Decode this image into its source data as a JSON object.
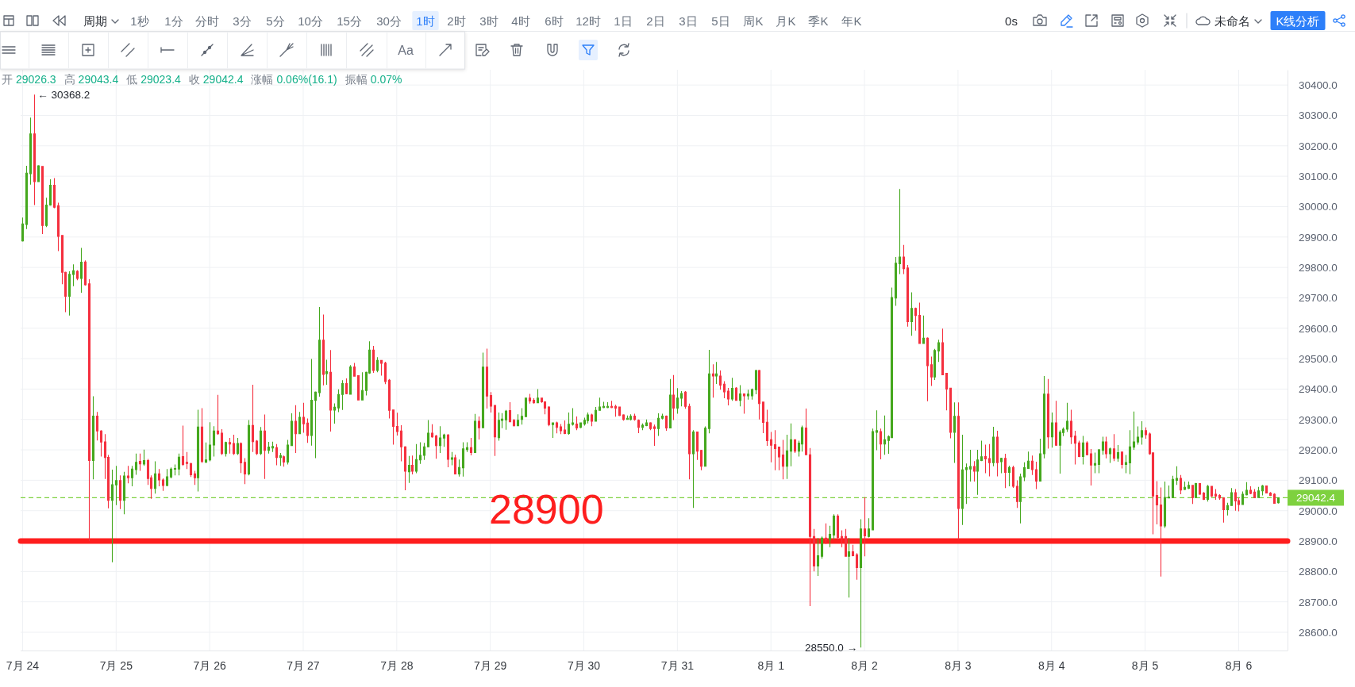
{
  "chart_data": {
    "type": "candlestick",
    "subtitle": "开 29026.3 高 29043.4 低 29023.4 收 29042.4 涨幅 0.06%(16.1) 振幅 0.07%",
    "categories": [
      "7月 24",
      null,
      null,
      null,
      null,
      null,
      null,
      null,
      null,
      null,
      null,
      null,
      null,
      null,
      null,
      null,
      null,
      null,
      null,
      null,
      null,
      null,
      null,
      null,
      "7月 25",
      null,
      null,
      null,
      null,
      null,
      null,
      null,
      null,
      null,
      null,
      null,
      null,
      null,
      null,
      null,
      null,
      null,
      null,
      null,
      null,
      null,
      null,
      null,
      "7月 26",
      null,
      null,
      null,
      null,
      null,
      null,
      null,
      null,
      null,
      null,
      null,
      null,
      null,
      null,
      null,
      null,
      null,
      null,
      null,
      null,
      null,
      null,
      null,
      "7月 27",
      null,
      null,
      null,
      null,
      null,
      null,
      null,
      null,
      null,
      null,
      null,
      null,
      null,
      null,
      null,
      null,
      null,
      null,
      null,
      null,
      null,
      null,
      null,
      "7月 28",
      null,
      null,
      null,
      null,
      null,
      null,
      null,
      null,
      null,
      null,
      null,
      null,
      null,
      null,
      null,
      null,
      null,
      null,
      null,
      null,
      null,
      null,
      null,
      "7月 29",
      null,
      null,
      null,
      null,
      null,
      null,
      null,
      null,
      null,
      null,
      null,
      null,
      null,
      null,
      null,
      null,
      null,
      null,
      null,
      null,
      null,
      null,
      null,
      "7月 30",
      null,
      null,
      null,
      null,
      null,
      null,
      null,
      null,
      null,
      null,
      null,
      null,
      null,
      null,
      null,
      null,
      null,
      null,
      null,
      null,
      null,
      null,
      null,
      "7月 31",
      null,
      null,
      null,
      null,
      null,
      null,
      null,
      null,
      null,
      null,
      null,
      null,
      null,
      null,
      null,
      null,
      null,
      null,
      null,
      null,
      null,
      null,
      null,
      "8月 1",
      null,
      null,
      null,
      null,
      null,
      null,
      null,
      null,
      null,
      null,
      null,
      null,
      null,
      null,
      null,
      null,
      null,
      null,
      null,
      null,
      null,
      null,
      null,
      "8月 2",
      null,
      null,
      null,
      null,
      null,
      null,
      null,
      null,
      null,
      null,
      null,
      null,
      null,
      null,
      null,
      null,
      null,
      null,
      null,
      null,
      null,
      null,
      null,
      "8月 3",
      null,
      null,
      null,
      null,
      null,
      null,
      null,
      null,
      null,
      null,
      null,
      null,
      null,
      null,
      null,
      null,
      null,
      null,
      null,
      null,
      null,
      null,
      null,
      "8月 4",
      null,
      null,
      null,
      null,
      null,
      null,
      null,
      null,
      null,
      null,
      null,
      null,
      null,
      null,
      null,
      null,
      null,
      null,
      null,
      null,
      null,
      null,
      null,
      "8月 5",
      null,
      null,
      null,
      null,
      null,
      null,
      null,
      null,
      null,
      null,
      null,
      null,
      null,
      null,
      null,
      null,
      null,
      null,
      null,
      null,
      null,
      null,
      null,
      "8月 6",
      null,
      null,
      null,
      null,
      null,
      null,
      null,
      null,
      null,
      null
    ],
    "ohlc": [
      [
        29887,
        29964,
        29885,
        29943
      ],
      [
        29941,
        30134,
        29926,
        30110
      ],
      [
        30108,
        30293,
        30072,
        30239
      ],
      [
        30239,
        30368.2,
        30005,
        30082
      ],
      [
        30082,
        30136,
        30082,
        30134
      ],
      [
        30132,
        30132,
        29910,
        29938
      ],
      [
        29938,
        30029,
        29933,
        30005
      ],
      [
        30005,
        30090,
        30003,
        30070
      ],
      [
        30070,
        30094,
        29995,
        29998
      ],
      [
        30003,
        30013,
        29854,
        29902
      ],
      [
        29905,
        29905,
        29745,
        29784
      ],
      [
        29784,
        29786,
        29653,
        29705
      ],
      [
        29705,
        29787,
        29642,
        29777
      ],
      [
        29777,
        29810,
        29738,
        29789
      ],
      [
        29787,
        29791,
        29758,
        29764
      ],
      [
        29764,
        29864,
        29717,
        29817
      ],
      [
        29818,
        29823,
        29740,
        29743
      ],
      [
        29746,
        29761,
        28900,
        29165
      ],
      [
        29165,
        29376,
        29103,
        29311
      ],
      [
        29311,
        29325,
        29231,
        29262
      ],
      [
        29262,
        29265,
        29178,
        29226
      ],
      [
        29226,
        29252,
        29104,
        29175
      ],
      [
        29175,
        29183,
        29008,
        29034
      ],
      [
        29034,
        29135,
        28830,
        29085
      ],
      [
        29085,
        29147,
        29018,
        29099
      ],
      [
        29099,
        29116,
        29005,
        29034
      ],
      [
        29034,
        29128,
        28988,
        29114
      ],
      [
        29114,
        29147,
        29090,
        29108
      ],
      [
        29108,
        29147,
        29080,
        29137
      ],
      [
        29135,
        29188,
        29118,
        29159
      ],
      [
        29162,
        29188,
        29131,
        29154
      ],
      [
        29153,
        29201,
        29147,
        29165
      ],
      [
        29165,
        29170,
        29085,
        29106
      ],
      [
        29108,
        29116,
        29039,
        29073
      ],
      [
        29073,
        29162,
        29056,
        29121
      ],
      [
        29121,
        29137,
        29080,
        29101
      ],
      [
        29101,
        29106,
        29065,
        29083
      ],
      [
        29083,
        29137,
        29080,
        29111
      ],
      [
        29111,
        29142,
        29106,
        29137
      ],
      [
        29137,
        29152,
        29116,
        29139
      ],
      [
        29137,
        29188,
        29116,
        29176
      ],
      [
        29178,
        29280,
        29147,
        29152
      ],
      [
        29159,
        29193,
        29137,
        29155
      ],
      [
        29155,
        29157,
        29111,
        29118
      ],
      [
        29121,
        29131,
        29085,
        29108
      ],
      [
        29108,
        29332,
        29063,
        29275
      ],
      [
        29275,
        29337,
        29157,
        29162
      ],
      [
        29159,
        29224,
        29157,
        29167
      ],
      [
        29167,
        29291,
        29162,
        29216
      ],
      [
        29216,
        29278,
        29178,
        29262
      ],
      [
        29262,
        29381,
        29250,
        29253
      ],
      [
        29255,
        29268,
        29183,
        29188
      ],
      [
        29188,
        29227,
        29178,
        29224
      ],
      [
        29224,
        29239,
        29188,
        29219
      ],
      [
        29221,
        29250,
        29183,
        29188
      ],
      [
        29188,
        29239,
        29183,
        29221
      ],
      [
        29221,
        29224,
        29124,
        29157
      ],
      [
        29159,
        29173,
        29087,
        29121
      ],
      [
        29121,
        29298,
        29116,
        29280
      ],
      [
        29280,
        29414,
        29193,
        29227
      ],
      [
        29229,
        29232,
        29183,
        29188
      ],
      [
        29188,
        29275,
        29183,
        29262
      ],
      [
        29262,
        29316,
        29104,
        29198
      ],
      [
        29198,
        29226,
        29188,
        29209
      ],
      [
        29206,
        29227,
        29193,
        29211
      ],
      [
        29207,
        29219,
        29149,
        29175
      ],
      [
        29175,
        29190,
        29147,
        29181
      ],
      [
        29177,
        29181,
        29145,
        29160
      ],
      [
        29160,
        29233,
        29152,
        29216
      ],
      [
        29214,
        29320,
        29214,
        29294
      ],
      [
        29294,
        29347,
        29190,
        29253
      ],
      [
        29253,
        29325,
        29253,
        29307
      ],
      [
        29307,
        29355,
        29256,
        29286
      ],
      [
        29288,
        29303,
        29223,
        29247
      ],
      [
        29247,
        29499,
        29214,
        29363
      ],
      [
        29363,
        29392,
        29173,
        29390
      ],
      [
        29388,
        29670,
        29375,
        29561
      ],
      [
        29561,
        29645,
        29412,
        29448
      ],
      [
        29451,
        29496,
        29414,
        29457
      ],
      [
        29455,
        29528,
        29260,
        29331
      ],
      [
        29331,
        29353,
        29286,
        29340
      ],
      [
        29338,
        29399,
        29324,
        29382
      ],
      [
        29382,
        29429,
        29331,
        29418
      ],
      [
        29418,
        29435,
        29383,
        29385
      ],
      [
        29383,
        29479,
        29383,
        29473
      ],
      [
        29473,
        29486,
        29442,
        29442
      ],
      [
        29444,
        29444,
        29364,
        29364
      ],
      [
        29364,
        29455,
        29364,
        29395
      ],
      [
        29395,
        29457,
        29379,
        29455
      ],
      [
        29453,
        29557,
        29450,
        29528
      ],
      [
        29528,
        29542,
        29453,
        29461
      ],
      [
        29461,
        29505,
        29455,
        29494
      ],
      [
        29494,
        29494,
        29444,
        29485
      ],
      [
        29485,
        29490,
        29416,
        29425
      ],
      [
        29429,
        29433,
        29303,
        29330
      ],
      [
        29331,
        29331,
        29217,
        29277
      ],
      [
        29277,
        29322,
        29247,
        29260
      ],
      [
        29262,
        29281,
        29162,
        29210
      ],
      [
        29210,
        29212,
        29067,
        29130
      ],
      [
        29128,
        29180,
        29091,
        29149
      ],
      [
        29149,
        29181,
        29119,
        29130
      ],
      [
        29130,
        29219,
        29123,
        29168
      ],
      [
        29167,
        29225,
        29154,
        29182
      ],
      [
        29182,
        29223,
        29167,
        29210
      ],
      [
        29210,
        29298,
        29210,
        29255
      ],
      [
        29255,
        29284,
        29240,
        29243
      ],
      [
        29246,
        29249,
        29171,
        29214
      ],
      [
        29214,
        29278,
        29190,
        29239
      ],
      [
        29239,
        29253,
        29210,
        29249
      ],
      [
        29249,
        29252,
        29143,
        29169
      ],
      [
        29169,
        29193,
        29149,
        29174
      ],
      [
        29174,
        29184,
        29119,
        29121
      ],
      [
        29121,
        29168,
        29112,
        29142
      ],
      [
        29141,
        29225,
        29112,
        29203
      ],
      [
        29201,
        29225,
        29193,
        29207
      ],
      [
        29207,
        29239,
        29182,
        29191
      ],
      [
        29191,
        29318,
        29191,
        29294
      ],
      [
        29294,
        29310,
        29234,
        29273
      ],
      [
        29273,
        29520,
        29273,
        29472
      ],
      [
        29472,
        29533,
        29336,
        29377
      ],
      [
        29379,
        29390,
        29323,
        29344
      ],
      [
        29346,
        29346,
        29180,
        29243
      ],
      [
        29240,
        29323,
        29230,
        29297
      ],
      [
        29297,
        29321,
        29271,
        29301
      ],
      [
        29299,
        29331,
        29266,
        29327
      ],
      [
        29329,
        29357,
        29292,
        29292
      ],
      [
        29297,
        29301,
        29277,
        29279
      ],
      [
        29279,
        29317,
        29279,
        29297
      ],
      [
        29300,
        29337,
        29283,
        29310
      ],
      [
        29309,
        29370,
        29309,
        29370
      ],
      [
        29370,
        29384,
        29352,
        29361
      ],
      [
        29363,
        29370,
        29352,
        29355
      ],
      [
        29355,
        29400,
        29355,
        29370
      ],
      [
        29370,
        29372,
        29355,
        29358
      ],
      [
        29358,
        29358,
        29317,
        29337
      ],
      [
        29341,
        29343,
        29278,
        29283
      ],
      [
        29283,
        29289,
        29239,
        29289
      ],
      [
        29289,
        29293,
        29254,
        29274
      ],
      [
        29276,
        29285,
        29252,
        29263
      ],
      [
        29265,
        29297,
        29252,
        29254
      ],
      [
        29254,
        29323,
        29250,
        29284
      ],
      [
        29284,
        29337,
        29280,
        29289
      ],
      [
        29285,
        29310,
        29265,
        29272
      ],
      [
        29274,
        29289,
        29271,
        29289
      ],
      [
        29285,
        29306,
        29280,
        29297
      ],
      [
        29296,
        29323,
        29287,
        29315
      ],
      [
        29315,
        29319,
        29278,
        29294
      ],
      [
        29294,
        29341,
        29294,
        29330
      ],
      [
        29330,
        29372,
        29330,
        29341
      ],
      [
        29339,
        29358,
        29337,
        29343
      ],
      [
        29339,
        29357,
        29337,
        29343
      ],
      [
        29343,
        29361,
        29337,
        29339
      ],
      [
        29343,
        29348,
        29309,
        29337
      ],
      [
        29341,
        29341,
        29311,
        29313
      ],
      [
        29315,
        29317,
        29296,
        29300
      ],
      [
        29300,
        29313,
        29300,
        29304
      ],
      [
        29300,
        29317,
        29297,
        29310
      ],
      [
        29311,
        29319,
        29296,
        29300
      ],
      [
        29297,
        29300,
        29255,
        29274
      ],
      [
        29274,
        29287,
        29265,
        29281
      ],
      [
        29280,
        29300,
        29278,
        29289
      ],
      [
        29289,
        29291,
        29265,
        29270
      ],
      [
        29276,
        29283,
        29213,
        29270
      ],
      [
        29270,
        29320,
        29246,
        29304
      ],
      [
        29304,
        29319,
        29300,
        29311
      ],
      [
        29311,
        29313,
        29263,
        29272
      ],
      [
        29272,
        29433,
        29272,
        29380
      ],
      [
        29380,
        29446,
        29298,
        29337
      ],
      [
        29337,
        29403,
        29319,
        29370
      ],
      [
        29370,
        29393,
        29343,
        29385
      ],
      [
        29390,
        29393,
        29335,
        29343
      ],
      [
        29343,
        29352,
        29103,
        29187
      ],
      [
        29187,
        29265,
        29009,
        29259
      ],
      [
        29259,
        29259,
        29167,
        29196
      ],
      [
        29198,
        29200,
        29133,
        29146
      ],
      [
        29146,
        29277,
        29146,
        29271
      ],
      [
        29270,
        29529,
        29254,
        29450
      ],
      [
        29450,
        29481,
        29372,
        29443
      ],
      [
        29443,
        29489,
        29417,
        29450
      ],
      [
        29443,
        29461,
        29398,
        29413
      ],
      [
        29416,
        29426,
        29370,
        29391
      ],
      [
        29393,
        29404,
        29346,
        29367
      ],
      [
        29367,
        29437,
        29361,
        29402
      ],
      [
        29403,
        29406,
        29361,
        29363
      ],
      [
        29363,
        29413,
        29343,
        29384
      ],
      [
        29384,
        29384,
        29319,
        29378
      ],
      [
        29378,
        29398,
        29365,
        29383
      ],
      [
        29378,
        29402,
        29365,
        29398
      ],
      [
        29398,
        29463,
        29383,
        29461
      ],
      [
        29461,
        29463,
        29300,
        29352
      ],
      [
        29357,
        29357,
        29255,
        29290
      ],
      [
        29291,
        29332,
        29213,
        29230
      ],
      [
        29233,
        29259,
        29159,
        29215
      ],
      [
        29217,
        29265,
        29133,
        29204
      ],
      [
        29209,
        29210,
        29133,
        29177
      ],
      [
        29183,
        29233,
        29103,
        29146
      ],
      [
        29146,
        29250,
        29104,
        29197
      ],
      [
        29196,
        29287,
        29146,
        29233
      ],
      [
        29233,
        29233,
        29190,
        29196
      ],
      [
        29196,
        29230,
        29178,
        29222
      ],
      [
        29219,
        29280,
        29194,
        29273
      ],
      [
        29272,
        29336,
        29184,
        29184
      ],
      [
        29184,
        29206,
        28686,
        28915
      ],
      [
        28915,
        28940,
        28800,
        28818
      ],
      [
        28818,
        28910,
        28785,
        28852
      ],
      [
        28850,
        28915,
        28842,
        28910
      ],
      [
        28910,
        28958,
        28890,
        28905
      ],
      [
        28905,
        28950,
        28880,
        28922
      ],
      [
        28920,
        28988,
        28905,
        28982
      ],
      [
        28982,
        28988,
        28905,
        28912
      ],
      [
        28915,
        28935,
        28880,
        28908
      ],
      [
        28915,
        28940,
        28850,
        28850
      ],
      [
        28850,
        28910,
        28714,
        28865
      ],
      [
        28865,
        28888,
        28850,
        28852
      ],
      [
        28855,
        28860,
        28773,
        28813
      ],
      [
        28813,
        28972,
        28550,
        28940
      ],
      [
        28940,
        29044,
        28850,
        28917
      ],
      [
        28915,
        28975,
        28912,
        28940
      ],
      [
        28937,
        29270,
        28937,
        29260
      ],
      [
        29258,
        29330,
        29199,
        29263
      ],
      [
        29260,
        29270,
        29169,
        29219
      ],
      [
        29219,
        29313,
        29184,
        29233
      ],
      [
        29231,
        29248,
        29187,
        29243
      ],
      [
        29240,
        29734,
        29240,
        29701
      ],
      [
        29699,
        29834,
        29674,
        29814
      ],
      [
        29812,
        30058,
        29778,
        29834
      ],
      [
        29834,
        29874,
        29778,
        29796
      ],
      [
        29798,
        29808,
        29605,
        29622
      ],
      [
        29622,
        29718,
        29575,
        29665
      ],
      [
        29665,
        29668,
        29592,
        29642
      ],
      [
        29642,
        29684,
        29550,
        29550
      ],
      [
        29550,
        29642,
        29550,
        29567
      ],
      [
        29567,
        29570,
        29360,
        29477
      ],
      [
        29480,
        29507,
        29410,
        29440
      ],
      [
        29440,
        29532,
        29430,
        29527
      ],
      [
        29525,
        29562,
        29489,
        29552
      ],
      [
        29552,
        29599,
        29447,
        29447
      ],
      [
        29452,
        29452,
        29330,
        29400
      ],
      [
        29403,
        29403,
        29238,
        29258
      ],
      [
        29258,
        29356,
        29157,
        29310
      ],
      [
        29310,
        29356,
        28905,
        29007
      ],
      [
        29007,
        29250,
        28953,
        29134
      ],
      [
        29135,
        29155,
        29022,
        29141
      ],
      [
        29137,
        29200,
        29096,
        29145
      ],
      [
        29145,
        29163,
        29096,
        29130
      ],
      [
        29130,
        29200,
        29052,
        29167
      ],
      [
        29165,
        29230,
        29163,
        29177
      ],
      [
        29178,
        29217,
        29123,
        29170
      ],
      [
        29171,
        29219,
        29113,
        29158
      ],
      [
        29158,
        29276,
        29146,
        29242
      ],
      [
        29242,
        29263,
        29113,
        29158
      ],
      [
        29161,
        29174,
        29123,
        29172
      ],
      [
        29172,
        29187,
        29074,
        29126
      ],
      [
        29126,
        29148,
        29080,
        29142
      ],
      [
        29142,
        29148,
        29075,
        29080
      ],
      [
        29080,
        29100,
        29009,
        29030
      ],
      [
        29030,
        29122,
        28958,
        29111
      ],
      [
        29111,
        29159,
        29097,
        29141
      ],
      [
        29139,
        29194,
        29139,
        29163
      ],
      [
        29163,
        29181,
        29117,
        29135
      ],
      [
        29135,
        29161,
        29071,
        29097
      ],
      [
        29097,
        29237,
        29097,
        29187
      ],
      [
        29187,
        29443,
        29172,
        29383
      ],
      [
        29383,
        29433,
        29204,
        29243
      ],
      [
        29243,
        29323,
        29207,
        29289
      ],
      [
        29289,
        29361,
        29213,
        29215
      ],
      [
        29215,
        29265,
        29122,
        29258
      ],
      [
        29257,
        29274,
        29245,
        29268
      ],
      [
        29268,
        29355,
        29259,
        29294
      ],
      [
        29294,
        29332,
        29219,
        29243
      ],
      [
        29245,
        29263,
        29152,
        29222
      ],
      [
        29223,
        29230,
        29176,
        29178
      ],
      [
        29178,
        29246,
        29152,
        29223
      ],
      [
        29223,
        29228,
        29182,
        29184
      ],
      [
        29187,
        29203,
        29083,
        29150
      ],
      [
        29150,
        29191,
        29123,
        29155
      ],
      [
        29152,
        29203,
        29123,
        29200
      ],
      [
        29198,
        29243,
        29184,
        29226
      ],
      [
        29226,
        29243,
        29172,
        29187
      ],
      [
        29187,
        29207,
        29157,
        29203
      ],
      [
        29203,
        29252,
        29163,
        29172
      ],
      [
        29172,
        29216,
        29161,
        29191
      ],
      [
        29193,
        29193,
        29139,
        29152
      ],
      [
        29152,
        29183,
        29123,
        29158
      ],
      [
        29157,
        29265,
        29120,
        29210
      ],
      [
        29209,
        29326,
        29200,
        29226
      ],
      [
        29226,
        29277,
        29217,
        29242
      ],
      [
        29242,
        29294,
        29217,
        29263
      ],
      [
        29263,
        29274,
        29237,
        29250
      ],
      [
        29252,
        29257,
        29184,
        29187
      ],
      [
        29190,
        29190,
        28922,
        29048
      ],
      [
        29050,
        29097,
        28955,
        29019
      ],
      [
        29019,
        29076,
        28783,
        28950
      ],
      [
        28950,
        29096,
        28943,
        29043
      ],
      [
        29042,
        29083,
        29042,
        29045
      ],
      [
        29043,
        29115,
        29042,
        29103
      ],
      [
        29100,
        29146,
        29085,
        29106
      ],
      [
        29106,
        29117,
        29054,
        29068
      ],
      [
        29070,
        29096,
        29068,
        29077
      ],
      [
        29074,
        29096,
        29071,
        29083
      ],
      [
        29083,
        29085,
        29022,
        29043
      ],
      [
        29043,
        29091,
        29042,
        29089
      ],
      [
        29089,
        29089,
        29052,
        29054
      ],
      [
        29058,
        29061,
        29035,
        29037
      ],
      [
        29037,
        29085,
        29030,
        29080
      ],
      [
        29080,
        29080,
        29045,
        29048
      ],
      [
        29054,
        29071,
        29036,
        29048
      ],
      [
        29050,
        29054,
        29036,
        29042
      ],
      [
        29042,
        29043,
        28961,
        29003
      ],
      [
        29003,
        29026,
        28984,
        29017
      ],
      [
        29017,
        29074,
        29016,
        29059
      ],
      [
        29059,
        29071,
        29000,
        29032
      ],
      [
        29033,
        29043,
        28998,
        29020
      ],
      [
        29020,
        29063,
        29020,
        29054
      ],
      [
        29052,
        29094,
        29050,
        29067
      ],
      [
        29067,
        29080,
        29054,
        29057
      ],
      [
        29061,
        29071,
        29042,
        29043
      ],
      [
        29043,
        29078,
        29042,
        29065
      ],
      [
        29065,
        29085,
        29050,
        29081
      ],
      [
        29081,
        29081,
        29058,
        29058
      ],
      [
        29058,
        29061,
        29048,
        29050
      ],
      [
        29054,
        29057,
        29024,
        29024
      ],
      [
        29026.3,
        29043.4,
        29023.4,
        29042.4
      ]
    ],
    "colors": [
      "#45a81e",
      "#45a81e",
      "#45a81e",
      "#f5303f",
      "#45a81e",
      "#f5303f",
      "#45a81e",
      "#45a81e",
      "#f5303f",
      "#f5303f",
      "#f5303f",
      "#f5303f",
      "#45a81e",
      "#45a81e",
      "#f5303f",
      "#45a81e",
      "#f5303f",
      "#f5303f",
      "#45a81e",
      "#f5303f",
      "#f5303f",
      "#f5303f",
      "#f5303f",
      "#45a81e",
      "#45a81e",
      "#f5303f",
      "#45a81e",
      "#f5303f",
      "#45a81e",
      "#45a81e",
      "#f5303f",
      "#45a81e",
      "#f5303f",
      "#f5303f",
      "#45a81e",
      "#f5303f",
      "#f5303f",
      "#45a81e",
      "#45a81e",
      "#45a81e",
      "#45a81e",
      "#f5303f",
      "#f5303f",
      "#f5303f",
      "#f5303f",
      "#45a81e",
      "#f5303f",
      "#45a81e",
      "#45a81e",
      "#45a81e",
      "#f5303f",
      "#f5303f",
      "#45a81e",
      "#f5303f",
      "#f5303f",
      "#45a81e",
      "#f5303f",
      "#f5303f",
      "#45a81e",
      "#f5303f",
      "#f5303f",
      "#45a81e",
      "#f5303f",
      "#45a81e",
      "#45a81e",
      "#f5303f",
      "#45a81e",
      "#f5303f",
      "#45a81e",
      "#45a81e",
      "#f5303f",
      "#45a81e",
      "#f5303f",
      "#f5303f",
      "#45a81e",
      "#45a81e",
      "#45a81e",
      "#f5303f",
      "#45a81e",
      "#f5303f",
      "#45a81e",
      "#45a81e",
      "#45a81e",
      "#f5303f",
      "#45a81e",
      "#f5303f",
      "#f5303f",
      "#45a81e",
      "#45a81e",
      "#45a81e",
      "#f5303f",
      "#45a81e",
      "#f5303f",
      "#f5303f",
      "#f5303f",
      "#f5303f",
      "#f5303f",
      "#f5303f",
      "#f5303f",
      "#45a81e",
      "#f5303f",
      "#45a81e",
      "#45a81e",
      "#45a81e",
      "#45a81e",
      "#f5303f",
      "#f5303f",
      "#45a81e",
      "#45a81e",
      "#f5303f",
      "#45a81e",
      "#f5303f",
      "#45a81e",
      "#45a81e",
      "#45a81e",
      "#f5303f",
      "#45a81e",
      "#f5303f",
      "#45a81e",
      "#f5303f",
      "#f5303f",
      "#f5303f",
      "#45a81e",
      "#45a81e",
      "#45a81e",
      "#f5303f",
      "#f5303f",
      "#45a81e",
      "#45a81e",
      "#45a81e",
      "#f5303f",
      "#f5303f",
      "#45a81e",
      "#f5303f",
      "#f5303f",
      "#f5303f",
      "#45a81e",
      "#f5303f",
      "#f5303f",
      "#f5303f",
      "#45a81e",
      "#45a81e",
      "#f5303f",
      "#45a81e",
      "#45a81e",
      "#45a81e",
      "#f5303f",
      "#45a81e",
      "#45a81e",
      "#45a81e",
      "#45a81e",
      "#f5303f",
      "#f5303f",
      "#f5303f",
      "#f5303f",
      "#45a81e",
      "#45a81e",
      "#f5303f",
      "#f5303f",
      "#45a81e",
      "#45a81e",
      "#f5303f",
      "#f5303f",
      "#45a81e",
      "#45a81e",
      "#f5303f",
      "#45a81e",
      "#f5303f",
      "#45a81e",
      "#45a81e",
      "#f5303f",
      "#f5303f",
      "#45a81e",
      "#f5303f",
      "#f5303f",
      "#45a81e",
      "#45a81e",
      "#f5303f",
      "#45a81e",
      "#f5303f",
      "#f5303f",
      "#f5303f",
      "#45a81e",
      "#f5303f",
      "#45a81e",
      "#f5303f",
      "#45a81e",
      "#45a81e",
      "#45a81e",
      "#f5303f",
      "#f5303f",
      "#f5303f",
      "#f5303f",
      "#f5303f",
      "#f5303f",
      "#f5303f",
      "#45a81e",
      "#45a81e",
      "#f5303f",
      "#45a81e",
      "#45a81e",
      "#f5303f",
      "#f5303f",
      "#f5303f",
      "#45a81e",
      "#45a81e",
      "#f5303f",
      "#45a81e",
      "#45a81e",
      "#f5303f",
      "#f5303f",
      "#f5303f",
      "#45a81e",
      "#f5303f",
      "#f5303f",
      "#45a81e",
      "#f5303f",
      "#45a81e",
      "#45a81e",
      "#45a81e",
      "#f5303f",
      "#45a81e",
      "#45a81e",
      "#45a81e",
      "#45a81e",
      "#45a81e",
      "#f5303f",
      "#f5303f",
      "#45a81e",
      "#f5303f",
      "#f5303f",
      "#45a81e",
      "#f5303f",
      "#f5303f",
      "#45a81e",
      "#45a81e",
      "#f5303f",
      "#f5303f",
      "#f5303f",
      "#45a81e",
      "#f5303f",
      "#45a81e",
      "#45a81e",
      "#45a81e",
      "#f5303f",
      "#45a81e",
      "#45a81e",
      "#f5303f",
      "#f5303f",
      "#45a81e",
      "#f5303f",
      "#45a81e",
      "#f5303f",
      "#45a81e",
      "#f5303f",
      "#f5303f",
      "#45a81e",
      "#45a81e",
      "#45a81e",
      "#f5303f",
      "#f5303f",
      "#45a81e",
      "#45a81e",
      "#f5303f",
      "#45a81e",
      "#f5303f",
      "#45a81e",
      "#45a81e",
      "#45a81e",
      "#f5303f",
      "#f5303f",
      "#f5303f",
      "#45a81e",
      "#f5303f",
      "#f5303f",
      "#45a81e",
      "#45a81e",
      "#45a81e",
      "#f5303f",
      "#45a81e",
      "#f5303f",
      "#45a81e",
      "#f5303f",
      "#45a81e",
      "#45a81e",
      "#45a81e",
      "#45a81e",
      "#45a81e",
      "#f5303f",
      "#f5303f",
      "#f5303f",
      "#f5303f",
      "#f5303f",
      "#45a81e",
      "#45a81e",
      "#45a81e",
      "#45a81e",
      "#f5303f",
      "#45a81e",
      "#45a81e",
      "#f5303f",
      "#45a81e",
      "#f5303f",
      "#f5303f",
      "#45a81e",
      "#f5303f",
      "#f5303f",
      "#f5303f",
      "#f5303f",
      "#45a81e",
      "#45a81e",
      "#f5303f",
      "#f5303f",
      "#45a81e",
      "#45a81e",
      "#f5303f",
      "#f5303f",
      "#45a81e",
      "#45a81e",
      "#f5303f",
      "#f5303f",
      "#f5303f",
      "#45a81e"
    ],
    "ylim": [
      28540,
      30450
    ],
    "yticks": [
      {
        "value": 30400,
        "label": "30400.0"
      },
      {
        "value": 30300,
        "label": "30300.0"
      },
      {
        "value": 30200,
        "label": "30200.0"
      },
      {
        "value": 30100,
        "label": "30100.0"
      },
      {
        "value": 30000,
        "label": "30000.0"
      },
      {
        "value": 29900,
        "label": "29900.0"
      },
      {
        "value": 29800,
        "label": "29800.0"
      },
      {
        "value": 29700,
        "label": "29700.0"
      },
      {
        "value": 29600,
        "label": "29600.0"
      },
      {
        "value": 29500,
        "label": "29500.0"
      },
      {
        "value": 29400,
        "label": "29400.0"
      },
      {
        "value": 29300,
        "label": "29300.0"
      },
      {
        "value": 29200,
        "label": "29200.0"
      },
      {
        "value": 29100,
        "label": "29100.0"
      },
      {
        "value": 29000,
        "label": "29000.0"
      },
      {
        "value": 28900,
        "label": "28900.0"
      },
      {
        "value": 28800,
        "label": "28800.0"
      },
      {
        "value": 28700,
        "label": "28700.0"
      },
      {
        "value": 28600,
        "label": "28600.0"
      }
    ],
    "grid": true,
    "ref_lines": [
      {
        "axis": "y",
        "value": 28900,
        "label": "28900",
        "color": "#fe1e1e",
        "line_style": "solid"
      },
      {
        "axis": "y",
        "value": 29042.4,
        "label": "29042.4",
        "color": "#7ed13f",
        "line_style": "dashed"
      }
    ],
    "annotations": [
      "周期",
      "1秒",
      "1分",
      "分时",
      "3分",
      "5分",
      "10分",
      "15分",
      "30分",
      "1时",
      "2时",
      "3时",
      "4时",
      "6时",
      "12时",
      "1日",
      "2日",
      "3日",
      "5日",
      "周K",
      "月K",
      "季K",
      "年K",
      "0s",
      "未命名",
      "K线分析",
      "Aa",
      "← 30368.2",
      "28550.0 →"
    ]
  }
}
